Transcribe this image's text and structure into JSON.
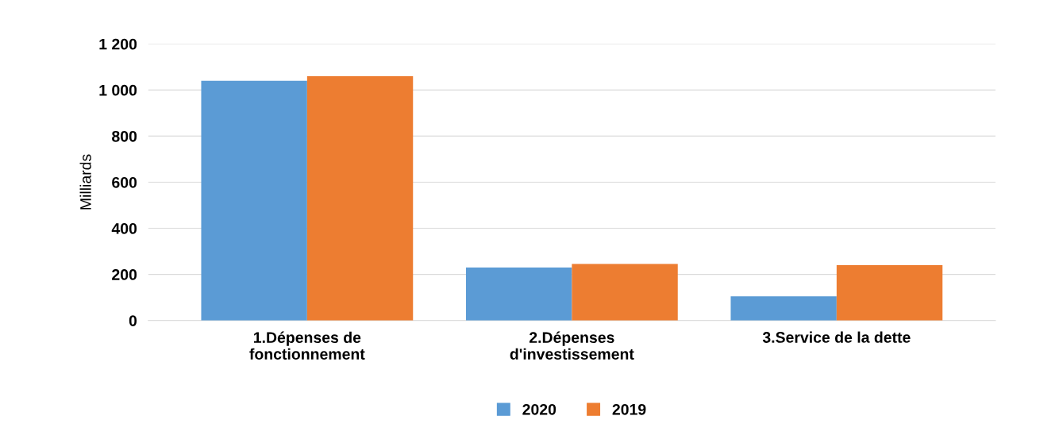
{
  "chart_data": {
    "type": "bar",
    "ylabel": "Milliards",
    "categories": [
      "1.Dépenses de\nfonctionnement",
      "2.Dépenses\nd'investissement",
      "3.Service de la dette"
    ],
    "series": [
      {
        "name": "2020",
        "color": "#5b9bd5",
        "values": [
          1040,
          230,
          105
        ]
      },
      {
        "name": "2019",
        "color": "#ed7d31",
        "values": [
          1060,
          245,
          240
        ]
      }
    ],
    "ylim": [
      0,
      1200
    ],
    "yticks": [
      0,
      200,
      400,
      600,
      800,
      {
        "value": 1000,
        "label": "1 000"
      },
      {
        "value": 1200,
        "label": "1 200"
      }
    ],
    "grid": "y",
    "legend": "bottom"
  }
}
